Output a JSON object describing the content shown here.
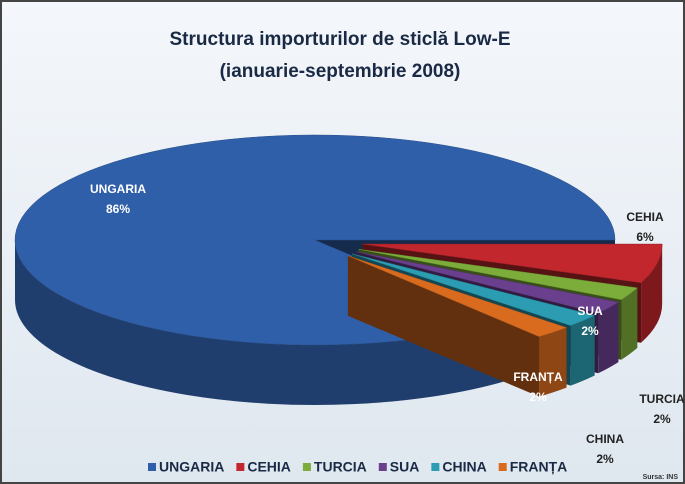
{
  "chart_data": {
    "type": "pie",
    "title": "Structura importurilor de sticlă Low-E",
    "subtitle": "(ianuarie-septembrie 2008)",
    "categories": [
      "UNGARIA",
      "CEHIA",
      "TURCIA",
      "SUA",
      "CHINA",
      "FRANȚA"
    ],
    "values": [
      86,
      6,
      2,
      2,
      2,
      2
    ],
    "value_labels": [
      "86%",
      "6%",
      "2%",
      "2%",
      "2%",
      "2%"
    ],
    "colors": [
      "#2f5fa9",
      "#c1272d",
      "#7cad3a",
      "#6a3f8e",
      "#2b9cb1",
      "#d96b1f"
    ],
    "source": "Sursa: INS",
    "legend": "bottom"
  }
}
